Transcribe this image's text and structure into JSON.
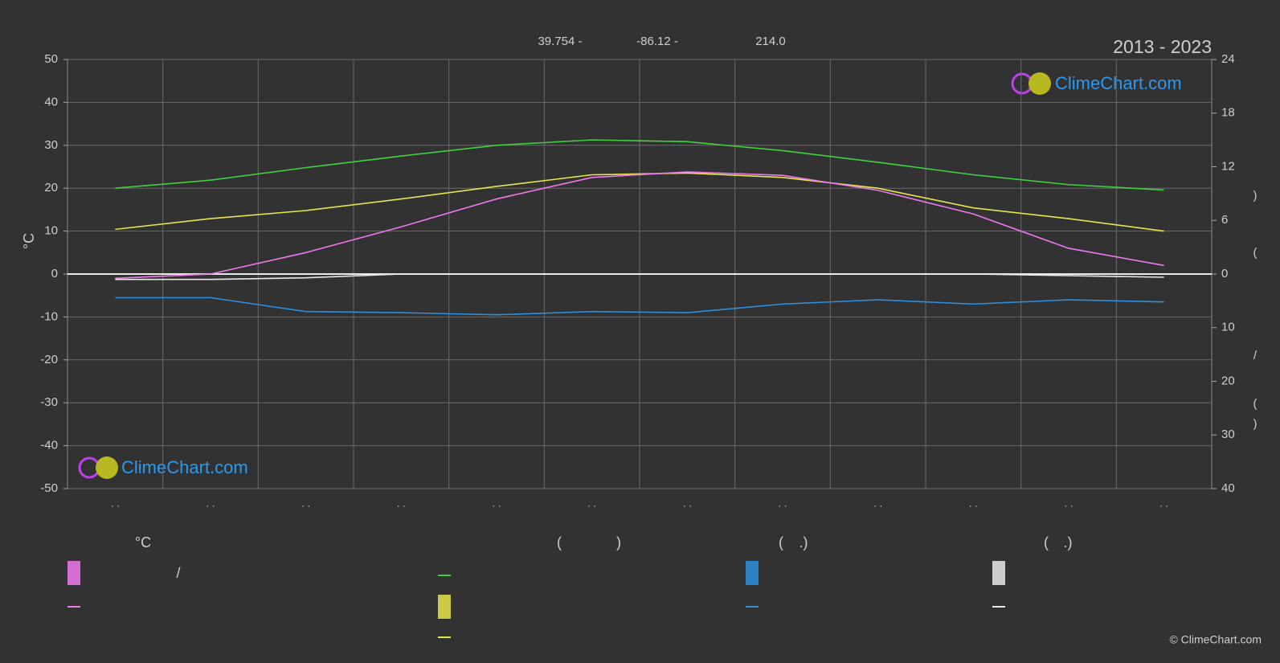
{
  "chart_data": {
    "type": "line",
    "title": "2013 - 2023",
    "header": [
      "39.754 -",
      "-86.12 -",
      "214.0"
    ],
    "ylabel": "°C",
    "watermark": "ClimeChart.com",
    "copyright": "© ClimeChart.com",
    "categories": [
      "· ·",
      "· ·",
      "· ·",
      "· ·",
      "· ·",
      "· ·",
      "· ·",
      "· ·",
      "· ·",
      "· ·",
      "· ·",
      "· ·"
    ],
    "ylim": [
      -50,
      50
    ],
    "yticks": [
      50,
      40,
      30,
      20,
      10,
      0,
      -10,
      -20,
      -30,
      -40,
      -50
    ],
    "y2lim": [
      0,
      24
    ],
    "y2ticks": [
      24,
      18,
      12,
      6,
      0
    ],
    "y3lim": [
      0,
      40
    ],
    "y3ticks": [
      10,
      20,
      30,
      40
    ],
    "y2_label_fragments": [
      ")",
      "(",
      "/",
      "(",
      ")"
    ],
    "legend_texts": [
      "°C",
      "/",
      "(",
      ")",
      "(",
      ".)",
      "(",
      ".)"
    ],
    "grid": true,
    "series": [
      {
        "color": "#3fd13f",
        "axis": "y2",
        "values": [
          9.6,
          10.5,
          11.9,
          13.2,
          14.4,
          15.0,
          14.8,
          13.8,
          12.5,
          11.1,
          10.0,
          9.4
        ]
      },
      {
        "color": "#e6e64a",
        "axis": "y2",
        "values": [
          5.0,
          6.2,
          7.1,
          8.4,
          9.8,
          11.1,
          11.3,
          10.8,
          9.6,
          7.4,
          6.2,
          4.8
        ]
      },
      {
        "color": "#ee78ee",
        "axis": "y",
        "values": [
          -1,
          0,
          5,
          11,
          17.5,
          22.5,
          23.8,
          23,
          19.5,
          14,
          6,
          2
        ]
      },
      {
        "color": "#2e8fdc",
        "axis": "y3",
        "values": [
          4.4,
          4.4,
          7.0,
          7.2,
          7.6,
          7.0,
          7.2,
          5.6,
          4.8,
          5.6,
          4.8,
          5.2
        ]
      },
      {
        "color": "#e8e8e8",
        "axis": "y3",
        "values": [
          1.0,
          1.0,
          0.7,
          0,
          0,
          0,
          0,
          0,
          0,
          0,
          0.3,
          0.6
        ]
      }
    ]
  }
}
